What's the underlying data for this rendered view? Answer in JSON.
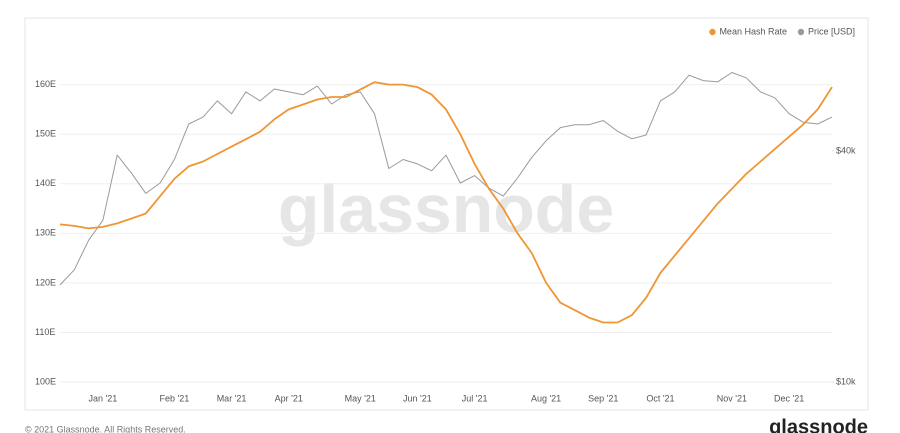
{
  "chart_data": {
    "type": "line",
    "legend": "top-right",
    "grid": true,
    "watermark": "glassnode",
    "footer": "© 2021 Glassnode. All Rights Reserved.",
    "logo": "glassnode",
    "categories": [
      null,
      null,
      null,
      "Jan '21",
      null,
      null,
      null,
      null,
      "Feb '21",
      null,
      null,
      null,
      "Mar '21",
      null,
      null,
      null,
      "Apr '21",
      null,
      null,
      null,
      null,
      "May '21",
      null,
      null,
      null,
      "Jun '21",
      null,
      null,
      null,
      "Jul '21",
      null,
      null,
      null,
      null,
      "Aug '21",
      null,
      null,
      null,
      "Sep '21",
      null,
      null,
      null,
      "Oct '21",
      null,
      null,
      null,
      null,
      "Nov '21",
      null,
      null,
      null,
      "Dec '21",
      null,
      null,
      null
    ],
    "series": [
      {
        "name": "Mean Hash Rate",
        "color": "#ef9634",
        "axis": "y",
        "values": [
          131.8,
          131.5,
          131,
          131.3,
          132,
          133,
          134,
          137.5,
          141,
          143.5,
          144.5,
          146,
          147.5,
          149,
          150.5,
          153,
          155,
          156,
          157,
          157.5,
          157.5,
          159,
          160.5,
          160,
          160,
          159.5,
          158,
          155,
          150,
          144,
          139,
          135,
          130,
          126,
          120,
          116,
          114.5,
          113,
          112,
          112,
          113.5,
          117,
          122,
          125.5,
          129,
          132.5,
          136,
          139,
          142,
          144.5,
          147,
          149.5,
          152,
          155,
          159.5
        ]
      },
      {
        "name": "Price [USD]",
        "color": "#9a9a9a",
        "axis": "y2",
        "values": [
          17900,
          19600,
          23400,
          26400,
          39000,
          35000,
          31000,
          33000,
          38000,
          47000,
          49000,
          54000,
          50000,
          57000,
          54000,
          58000,
          57000,
          56000,
          59000,
          53000,
          56000,
          57000,
          50000,
          36000,
          38000,
          37000,
          35500,
          39000,
          33000,
          34500,
          32000,
          30500,
          34000,
          38500,
          42500,
          46000,
          46800,
          46800,
          48000,
          45000,
          43000,
          44000,
          54000,
          57000,
          63000,
          61000,
          60500,
          64000,
          62000,
          57000,
          55000,
          50000,
          47500,
          47000,
          49000
        ]
      }
    ],
    "ylim": [
      100,
      168
    ],
    "yticks": [
      {
        "value": 100,
        "label": "100E"
      },
      {
        "value": 110,
        "label": "110E"
      },
      {
        "value": 120,
        "label": "120E"
      },
      {
        "value": 130,
        "label": "130E"
      },
      {
        "value": 140,
        "label": "140E"
      },
      {
        "value": 150,
        "label": "150E"
      },
      {
        "value": 160,
        "label": "160E"
      }
    ],
    "y2lim": [
      10000,
      75500
    ],
    "y2scale": "log",
    "y2ticks": [
      {
        "value": 10000,
        "label": "$10k"
      },
      {
        "value": 40000,
        "label": "$40k"
      }
    ]
  }
}
